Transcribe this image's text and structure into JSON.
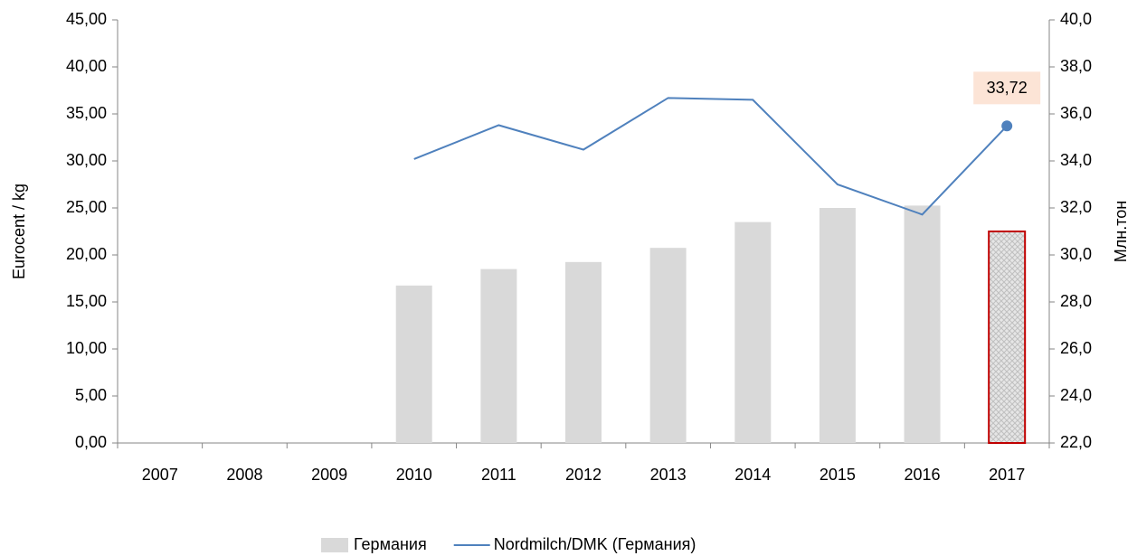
{
  "chart_data": {
    "type": "bar+line",
    "ylabel": "Eurocent / kg",
    "y2label": "Млн.тон",
    "categories": [
      "2007",
      "2008",
      "2009",
      "2010",
      "2011",
      "2012",
      "2013",
      "2014",
      "2015",
      "2016",
      "2017"
    ],
    "series": [
      {
        "name": "Германия",
        "type": "bar",
        "axis": "y2",
        "color": "#d9d9d9",
        "values": [
          null,
          null,
          null,
          28.7,
          29.4,
          29.7,
          30.3,
          31.4,
          32.0,
          32.1,
          31.0
        ],
        "hatched": [
          false,
          false,
          false,
          false,
          false,
          false,
          false,
          false,
          false,
          false,
          true
        ],
        "edge_colors": [
          "#d9d9d9",
          "#d9d9d9",
          "#d9d9d9",
          "#d9d9d9",
          "#d9d9d9",
          "#d9d9d9",
          "#d9d9d9",
          "#d9d9d9",
          "#d9d9d9",
          "#d9d9d9",
          "#c00000"
        ]
      },
      {
        "name": "Nordmilch/DMK (Германия)",
        "type": "line",
        "axis": "y",
        "color": "#4f81bd",
        "values": [
          null,
          null,
          null,
          30.2,
          33.8,
          31.2,
          36.7,
          36.5,
          27.5,
          24.3,
          33.72
        ],
        "value_labels": [
          null,
          null,
          null,
          null,
          null,
          null,
          null,
          null,
          null,
          null,
          "33,72"
        ]
      }
    ],
    "ylim": [
      0,
      45
    ],
    "yticks": [
      {
        "value": 0,
        "label": "0,00"
      },
      {
        "value": 5,
        "label": "5,00"
      },
      {
        "value": 10,
        "label": "10,00"
      },
      {
        "value": 15,
        "label": "15,00"
      },
      {
        "value": 20,
        "label": "20,00"
      },
      {
        "value": 25,
        "label": "25,00"
      },
      {
        "value": 30,
        "label": "30,00"
      },
      {
        "value": 35,
        "label": "35,00"
      },
      {
        "value": 40,
        "label": "40,00"
      },
      {
        "value": 45,
        "label": "45,00"
      }
    ],
    "y2lim": [
      22,
      40
    ],
    "y2ticks": [
      {
        "value": 22,
        "label": "22,0"
      },
      {
        "value": 24,
        "label": "24,0"
      },
      {
        "value": 26,
        "label": "26,0"
      },
      {
        "value": 28,
        "label": "28,0"
      },
      {
        "value": 30,
        "label": "30,0"
      },
      {
        "value": 32,
        "label": "32,0"
      },
      {
        "value": 34,
        "label": "34,0"
      },
      {
        "value": 36,
        "label": "36,0"
      },
      {
        "value": 38,
        "label": "38,0"
      },
      {
        "value": 40,
        "label": "40,0"
      }
    ],
    "grid": false,
    "legend": "bottom"
  }
}
